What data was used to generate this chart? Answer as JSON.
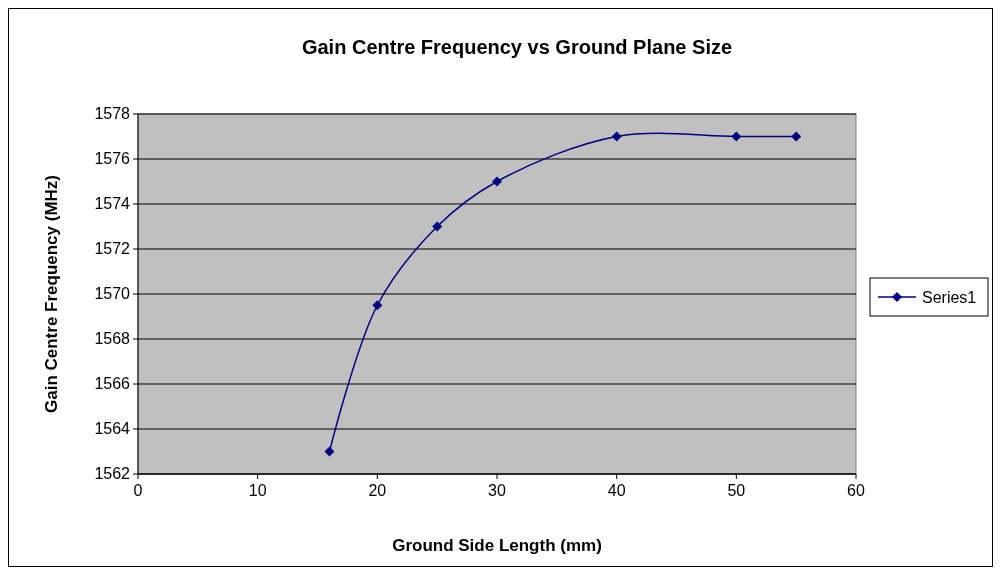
{
  "chart_data": {
    "type": "line",
    "title": "Gain Centre Frequency vs Ground Plane Size",
    "xlabel": "Ground Side Length  (mm)",
    "ylabel": "Gain Centre Frequency (MHz)",
    "series": [
      {
        "name": "Series1",
        "color": "#000080",
        "x": [
          16,
          20,
          25,
          30,
          40,
          50,
          55
        ],
        "values": [
          1563,
          1569.5,
          1573,
          1575,
          1577,
          1577,
          1577
        ]
      }
    ],
    "xlim": [
      0,
      60
    ],
    "xticks": [
      0,
      10,
      20,
      30,
      40,
      50,
      60
    ],
    "ylim": [
      1562,
      1578
    ],
    "yticks": [
      1562,
      1564,
      1566,
      1568,
      1570,
      1572,
      1574,
      1576,
      1578
    ],
    "grid": "y",
    "legend": "right",
    "marker": "diamond",
    "line_style": "solid"
  }
}
